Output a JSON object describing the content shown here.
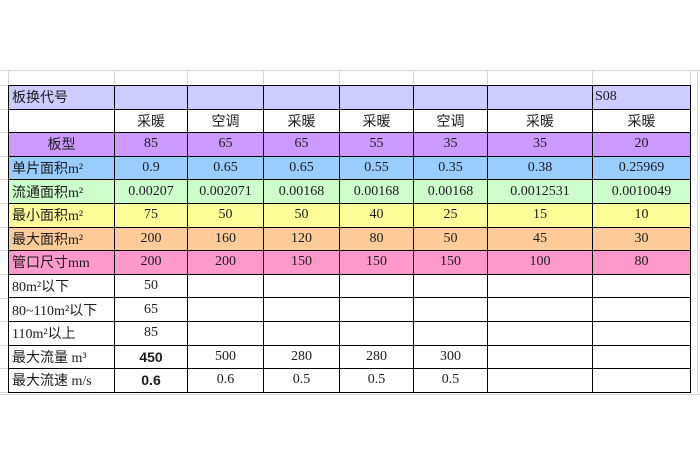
{
  "table": {
    "code_value": "S08",
    "rows": [
      {
        "name": "code",
        "label": "板换代号",
        "bg": "#CCCCFF",
        "label_align": "left",
        "value_align": "left",
        "values": [
          "",
          "",
          "",
          "",
          "",
          "",
          "S08"
        ]
      },
      {
        "name": "mode",
        "label": "",
        "bg": "#FFFFFF",
        "label_align": "left",
        "values": [
          "采暖",
          "空调",
          "采暖",
          "采暖",
          "空调",
          "采暖",
          "采暖"
        ]
      },
      {
        "name": "plate-type",
        "label": "板型",
        "bg": "#CC99FF",
        "label_align": "center",
        "values": [
          "85",
          "65",
          "65",
          "55",
          "35",
          "35",
          "20"
        ]
      },
      {
        "name": "single-plate-area",
        "label": "单片面积m²",
        "bg": "#99CCFF",
        "label_align": "left",
        "values": [
          "0.9",
          "0.65",
          "0.65",
          "0.55",
          "0.35",
          "0.38",
          "0.25969"
        ]
      },
      {
        "name": "flow-area",
        "label": "流通面积m²",
        "bg": "#CCFFCC",
        "label_align": "left",
        "values": [
          "0.00207",
          "0.002071",
          "0.00168",
          "0.00168",
          "0.00168",
          "0.0012531",
          "0.0010049"
        ]
      },
      {
        "name": "min-area",
        "label": "最小面积m²",
        "bg": "#FFFF99",
        "label_align": "left",
        "values": [
          "75",
          "50",
          "50",
          "40",
          "25",
          "15",
          "10"
        ]
      },
      {
        "name": "max-area",
        "label": "最大面积m²",
        "bg": "#FFCC99",
        "label_align": "left",
        "values": [
          "200",
          "160",
          "120",
          "80",
          "50",
          "45",
          "30"
        ]
      },
      {
        "name": "nozzle-size",
        "label": "管口尺寸mm",
        "bg": "#FF99CC",
        "label_align": "left",
        "values": [
          "200",
          "200",
          "150",
          "150",
          "150",
          "100",
          "80"
        ]
      },
      {
        "name": "below-80",
        "label": "80m²以下",
        "bg": "#FFFFFF",
        "label_align": "left",
        "value_color": "#FF0000",
        "values": [
          "50",
          "",
          "",
          "",
          "",
          "",
          ""
        ]
      },
      {
        "name": "80-to-110",
        "label": "80~110m²以下",
        "bg": "#FFFFFF",
        "label_align": "left",
        "value_color": "#FF0000",
        "values": [
          "65",
          "",
          "",
          "",
          "",
          "",
          ""
        ]
      },
      {
        "name": "above-110",
        "label": "110m²以上",
        "bg": "#FFFFFF",
        "label_align": "left",
        "value_color": "#FF0000",
        "values": [
          "85",
          "",
          "",
          "",
          "",
          "",
          ""
        ]
      },
      {
        "name": "max-flow",
        "label": "最大流量 m³",
        "bg": "#FFFFFF",
        "label_align": "left",
        "first_value_font": "sans",
        "values": [
          "450",
          "500",
          "280",
          "280",
          "300",
          "",
          ""
        ]
      },
      {
        "name": "max-velocity",
        "label": "最大流速 m/s",
        "bg": "#FFFFFF",
        "label_align": "left",
        "first_value_font": "sans",
        "values": [
          "0.6",
          "0.6",
          "0.5",
          "0.5",
          "0.5",
          "",
          ""
        ]
      }
    ]
  },
  "colors": {
    "row_code": "#CCCCFF",
    "row_plate_type": "#CC99FF",
    "row_single_area": "#99CCFF",
    "row_flow_area": "#CCFFCC",
    "row_min_area": "#FFFF99",
    "row_max_area": "#FFCC99",
    "row_nozzle": "#FF99CC",
    "highlight_text": "#FF0000",
    "table_border": "#000000",
    "sheet_gridline": "#D6D6D6"
  }
}
